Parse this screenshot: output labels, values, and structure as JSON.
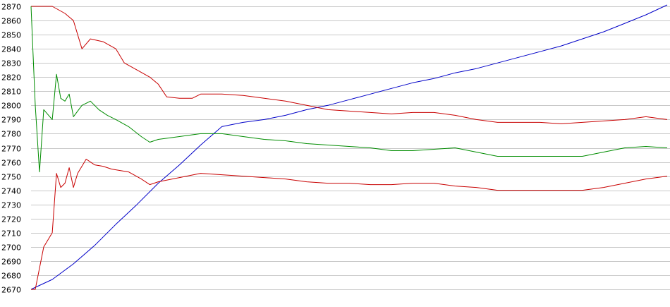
{
  "chart_data": {
    "type": "line",
    "title": "",
    "xlabel": "",
    "ylabel": "",
    "ylim": [
      2670,
      2870
    ],
    "xlim": [
      0,
      150
    ],
    "grid": true,
    "yticks": [
      "2870",
      "2860",
      "2850",
      "2840",
      "2830",
      "2820",
      "2810",
      "2800",
      "2790",
      "2780",
      "2770",
      "2760",
      "2750",
      "2740",
      "2730",
      "2720",
      "2710",
      "2700",
      "2690",
      "2680",
      "2670"
    ],
    "series": [
      {
        "color": "#0000c8",
        "points": [
          [
            0,
            2670
          ],
          [
            5,
            2677
          ],
          [
            10,
            2688
          ],
          [
            15,
            2701
          ],
          [
            20,
            2716
          ],
          [
            25,
            2730
          ],
          [
            30,
            2745
          ],
          [
            35,
            2758
          ],
          [
            40,
            2772
          ],
          [
            45,
            2785
          ],
          [
            50,
            2788
          ],
          [
            55,
            2790
          ],
          [
            60,
            2793
          ],
          [
            65,
            2797
          ],
          [
            70,
            2800
          ],
          [
            75,
            2804
          ],
          [
            80,
            2808
          ],
          [
            85,
            2812
          ],
          [
            90,
            2816
          ],
          [
            95,
            2819
          ],
          [
            100,
            2823
          ],
          [
            105,
            2826
          ],
          [
            110,
            2830
          ],
          [
            115,
            2834
          ],
          [
            120,
            2838
          ],
          [
            125,
            2842
          ],
          [
            130,
            2847
          ],
          [
            135,
            2852
          ],
          [
            140,
            2858
          ],
          [
            145,
            2864
          ],
          [
            150,
            2871
          ]
        ]
      },
      {
        "color": "#c80000",
        "points": [
          [
            0,
            2870
          ],
          [
            3,
            2870
          ],
          [
            5,
            2870
          ],
          [
            8,
            2865
          ],
          [
            10,
            2860
          ],
          [
            12,
            2840
          ],
          [
            14,
            2847
          ],
          [
            17,
            2845
          ],
          [
            20,
            2840
          ],
          [
            22,
            2830
          ],
          [
            25,
            2825
          ],
          [
            28,
            2820
          ],
          [
            30,
            2815
          ],
          [
            32,
            2806
          ],
          [
            35,
            2805
          ],
          [
            38,
            2805
          ],
          [
            40,
            2808
          ],
          [
            45,
            2808
          ],
          [
            50,
            2807
          ],
          [
            55,
            2805
          ],
          [
            60,
            2803
          ],
          [
            65,
            2800
          ],
          [
            70,
            2797
          ],
          [
            75,
            2796
          ],
          [
            80,
            2795
          ],
          [
            85,
            2794
          ],
          [
            90,
            2795
          ],
          [
            95,
            2795
          ],
          [
            100,
            2793
          ],
          [
            105,
            2790
          ],
          [
            110,
            2788
          ],
          [
            115,
            2788
          ],
          [
            120,
            2788
          ],
          [
            125,
            2787
          ],
          [
            130,
            2788
          ],
          [
            135,
            2789
          ],
          [
            140,
            2790
          ],
          [
            145,
            2792
          ],
          [
            150,
            2790
          ]
        ]
      },
      {
        "color": "#008c00",
        "points": [
          [
            0,
            2870
          ],
          [
            1,
            2800
          ],
          [
            2,
            2753
          ],
          [
            3,
            2797
          ],
          [
            5,
            2790
          ],
          [
            6,
            2822
          ],
          [
            7,
            2805
          ],
          [
            8,
            2803
          ],
          [
            9,
            2808
          ],
          [
            10,
            2792
          ],
          [
            12,
            2800
          ],
          [
            14,
            2803
          ],
          [
            16,
            2797
          ],
          [
            18,
            2793
          ],
          [
            20,
            2790
          ],
          [
            23,
            2785
          ],
          [
            26,
            2778
          ],
          [
            28,
            2774
          ],
          [
            30,
            2776
          ],
          [
            35,
            2778
          ],
          [
            40,
            2780
          ],
          [
            45,
            2780
          ],
          [
            50,
            2778
          ],
          [
            55,
            2776
          ],
          [
            60,
            2775
          ],
          [
            65,
            2773
          ],
          [
            70,
            2772
          ],
          [
            75,
            2771
          ],
          [
            80,
            2770
          ],
          [
            85,
            2768
          ],
          [
            90,
            2768
          ],
          [
            95,
            2769
          ],
          [
            100,
            2770
          ],
          [
            105,
            2767
          ],
          [
            110,
            2764
          ],
          [
            115,
            2764
          ],
          [
            120,
            2764
          ],
          [
            125,
            2764
          ],
          [
            130,
            2764
          ],
          [
            135,
            2767
          ],
          [
            140,
            2770
          ],
          [
            145,
            2771
          ],
          [
            150,
            2770
          ]
        ]
      },
      {
        "color": "#c80000",
        "points": [
          [
            0,
            2670
          ],
          [
            1,
            2670
          ],
          [
            3,
            2700
          ],
          [
            5,
            2710
          ],
          [
            6,
            2752
          ],
          [
            7,
            2742
          ],
          [
            8,
            2745
          ],
          [
            9,
            2756
          ],
          [
            10,
            2742
          ],
          [
            11,
            2752
          ],
          [
            13,
            2762
          ],
          [
            15,
            2758
          ],
          [
            17,
            2757
          ],
          [
            19,
            2755
          ],
          [
            21,
            2754
          ],
          [
            23,
            2753
          ],
          [
            26,
            2748
          ],
          [
            28,
            2744
          ],
          [
            30,
            2746
          ],
          [
            35,
            2749
          ],
          [
            40,
            2752
          ],
          [
            45,
            2751
          ],
          [
            50,
            2750
          ],
          [
            55,
            2749
          ],
          [
            60,
            2748
          ],
          [
            65,
            2746
          ],
          [
            70,
            2745
          ],
          [
            75,
            2745
          ],
          [
            80,
            2744
          ],
          [
            85,
            2744
          ],
          [
            90,
            2745
          ],
          [
            95,
            2745
          ],
          [
            100,
            2743
          ],
          [
            105,
            2742
          ],
          [
            110,
            2740
          ],
          [
            115,
            2740
          ],
          [
            120,
            2740
          ],
          [
            125,
            2740
          ],
          [
            130,
            2740
          ],
          [
            135,
            2742
          ],
          [
            140,
            2745
          ],
          [
            145,
            2748
          ],
          [
            150,
            2750
          ]
        ]
      }
    ]
  }
}
